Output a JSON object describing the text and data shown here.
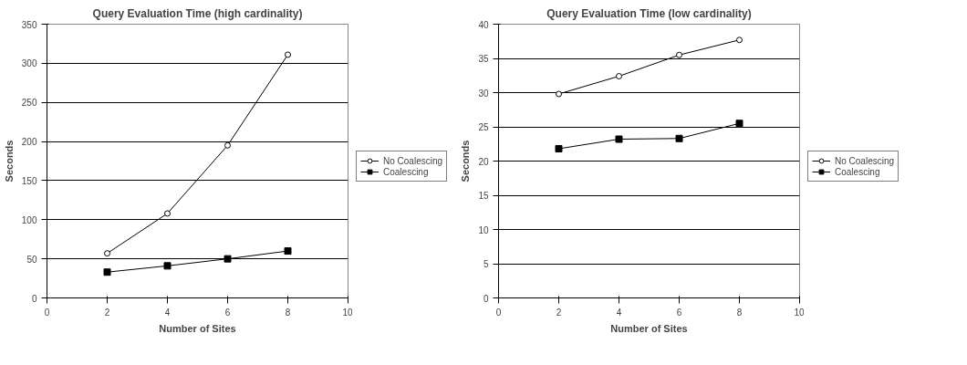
{
  "chart_data": [
    {
      "type": "line",
      "title": "Query Evaluation Time (high cardinality)",
      "xlabel": "Number of Sites",
      "ylabel": "Seconds",
      "x": [
        2,
        4,
        6,
        8
      ],
      "xlim": [
        0,
        10
      ],
      "xticks": [
        0,
        2,
        4,
        6,
        8,
        10
      ],
      "ylim": [
        0,
        350
      ],
      "yticks": [
        0,
        50,
        100,
        150,
        200,
        250,
        300,
        350
      ],
      "grid": "y",
      "legend": "right",
      "series": [
        {
          "name": "No Coalescing",
          "color": "#000000",
          "marker": "circle",
          "values": [
            57,
            108,
            195,
            311
          ]
        },
        {
          "name": "Coalescing",
          "color": "#000000",
          "marker": "square",
          "values": [
            33,
            41,
            50,
            60
          ]
        }
      ]
    },
    {
      "type": "line",
      "title": "Query Evaluation Time (low cardinality)",
      "xlabel": "Number of Sites",
      "ylabel": "Seconds",
      "x": [
        2,
        4,
        6,
        8
      ],
      "xlim": [
        0,
        10
      ],
      "xticks": [
        0,
        2,
        4,
        6,
        8,
        10
      ],
      "ylim": [
        0,
        40
      ],
      "yticks": [
        0,
        5,
        10,
        15,
        20,
        25,
        30,
        35,
        40
      ],
      "grid": "y",
      "legend": "right",
      "series": [
        {
          "name": "No Coalescing",
          "color": "#000000",
          "marker": "circle",
          "values": [
            29.8,
            32.4,
            35.5,
            37.7
          ]
        },
        {
          "name": "Coalescing",
          "color": "#000000",
          "marker": "square",
          "values": [
            21.8,
            23.2,
            23.3,
            25.5
          ]
        }
      ]
    }
  ]
}
